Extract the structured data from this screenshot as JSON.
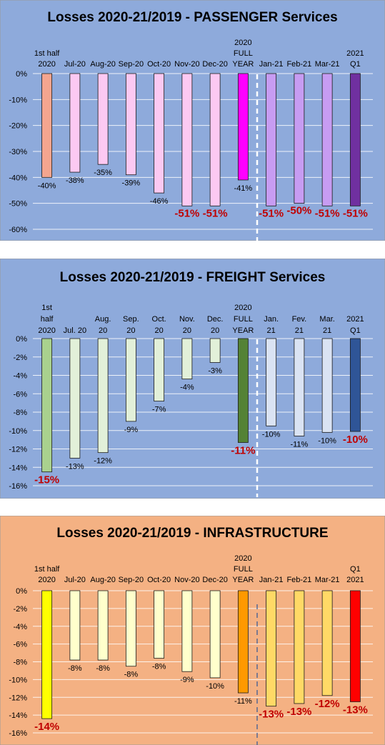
{
  "chart_data": [
    {
      "type": "bar",
      "title": "Losses 2020-21/2019 - PASSENGER Services",
      "categories": [
        [
          "1st half",
          "2020"
        ],
        [
          "Jul-20"
        ],
        [
          "Aug-20"
        ],
        [
          "Sep-20"
        ],
        [
          "Oct-20"
        ],
        [
          "Nov-20"
        ],
        [
          "Dec-20"
        ],
        [
          "2020",
          "FULL",
          "YEAR"
        ],
        [
          "Jan-21"
        ],
        [
          "Feb-21"
        ],
        [
          "Mar-21"
        ],
        [
          "2021",
          "Q1"
        ]
      ],
      "values": [
        -40,
        -38,
        -35,
        -39,
        -46,
        -51,
        -51,
        -41,
        -51,
        -50,
        -51,
        -51
      ],
      "data_labels": [
        "-40%",
        "-38%",
        "-35%",
        "-39%",
        "-46%",
        "-51%",
        "-51%",
        "-41%",
        "-51%",
        "-50%",
        "-51%",
        "-51%"
      ],
      "highlight_labels": [
        5,
        6,
        8,
        9,
        10,
        11
      ],
      "ylim": [
        -60,
        0
      ],
      "yticks": [
        0,
        -10,
        -20,
        -30,
        -40,
        -50,
        -60
      ],
      "ytick_labels": [
        "0%",
        "-10%",
        "-20%",
        "-30%",
        "-40%",
        "-50%",
        "-60%"
      ],
      "grid": true,
      "background": "#8eaadb",
      "bar_colors": [
        "#f4a58f",
        "#fcc9f2",
        "#fcc9f2",
        "#fcc9f2",
        "#fcc9f2",
        "#fcc9f2",
        "#fcc9f2",
        "#ff00ff",
        "#c79cf2",
        "#c79cf2",
        "#c79cf2",
        "#7030a0"
      ],
      "label_color": "#000000",
      "highlight_color": "#c00000",
      "separator": {
        "after_index": 7,
        "style": "white-dashed"
      }
    },
    {
      "type": "bar",
      "title": "Losses 2020-21/2019 - FREIGHT Services",
      "categories": [
        [
          "1st",
          "half",
          "2020"
        ],
        [
          "Jul. 20"
        ],
        [
          "Aug.",
          "20"
        ],
        [
          "Sep.",
          "20"
        ],
        [
          "Oct.",
          "20"
        ],
        [
          "Nov.",
          "20"
        ],
        [
          "Dec.",
          "20"
        ],
        [
          "2020",
          "FULL",
          "YEAR"
        ],
        [
          "Jan.",
          "21"
        ],
        [
          "Fev.",
          "21"
        ],
        [
          "Mar.",
          "21"
        ],
        [
          "2021",
          "Q1"
        ]
      ],
      "values": [
        -14.5,
        -13,
        -12.4,
        -9,
        -6.8,
        -4.4,
        -2.6,
        -11.3,
        -9.5,
        -10.6,
        -10.2,
        -10.1
      ],
      "data_labels": [
        "-15%",
        "-13%",
        "-12%",
        "-9%",
        "-7%",
        "-4%",
        "-3%",
        "-11%",
        "-10%",
        "-11%",
        "-10%",
        "-10%"
      ],
      "highlight_labels": [
        0,
        7,
        11
      ],
      "ylim": [
        -16,
        0
      ],
      "yticks": [
        0,
        -2,
        -4,
        -6,
        -8,
        -10,
        -12,
        -14,
        -16
      ],
      "ytick_labels": [
        "0%",
        "-2%",
        "-4%",
        "-6%",
        "-8%",
        "-10%",
        "-12%",
        "-14%",
        "-16%"
      ],
      "grid": true,
      "background": "#8eaadb",
      "bar_colors": [
        "#a9d18e",
        "#e2f0d9",
        "#e2f0d9",
        "#e2f0d9",
        "#e2f0d9",
        "#e2f0d9",
        "#e2f0d9",
        "#548235",
        "#dae3f3",
        "#dae3f3",
        "#dae3f3",
        "#2f5597"
      ],
      "label_color": "#000000",
      "highlight_color": "#c00000",
      "separator": {
        "after_index": 7,
        "style": "white-dashed"
      }
    },
    {
      "type": "bar",
      "title": "Losses 2020-21/2019 - INFRASTRUCTURE",
      "categories": [
        [
          "1st half",
          "2020"
        ],
        [
          "Jul-20"
        ],
        [
          "Aug-20"
        ],
        [
          "Sep-20"
        ],
        [
          "Oct-20"
        ],
        [
          "Nov-20"
        ],
        [
          "Dec-20"
        ],
        [
          "2020",
          "FULL",
          "YEAR"
        ],
        [
          "Jan-21"
        ],
        [
          "Feb-21"
        ],
        [
          "Mar-21"
        ],
        [
          "Q1",
          "2021"
        ]
      ],
      "values": [
        -14.4,
        -7.8,
        -7.8,
        -8.5,
        -7.6,
        -9.1,
        -9.8,
        -11.5,
        -13,
        -12.7,
        -11.8,
        -12.5
      ],
      "data_labels": [
        "-14%",
        "-8%",
        "-8%",
        "-8%",
        "-8%",
        "-9%",
        "-10%",
        "-11%",
        "-13%",
        "-13%",
        "-12%",
        "-13%"
      ],
      "highlight_labels": [
        0,
        8,
        9,
        10,
        11
      ],
      "ylim": [
        -16,
        0
      ],
      "yticks": [
        0,
        -2,
        -4,
        -6,
        -8,
        -10,
        -12,
        -14,
        -16
      ],
      "ytick_labels": [
        "0%",
        "-2%",
        "-4%",
        "-6%",
        "-8%",
        "-10%",
        "-12%",
        "-14%",
        "-16%"
      ],
      "grid": true,
      "background": "#f4b183",
      "bar_colors": [
        "#ffff00",
        "#ffffcc",
        "#ffffcc",
        "#ffffcc",
        "#ffffcc",
        "#ffffcc",
        "#ffffcc",
        "#ff9900",
        "#ffd966",
        "#ffd966",
        "#ffd966",
        "#ff0000"
      ],
      "label_color": "#000000",
      "highlight_color": "#c00000",
      "separator": {
        "after_index": 7,
        "style": "blue-dashed"
      }
    }
  ]
}
